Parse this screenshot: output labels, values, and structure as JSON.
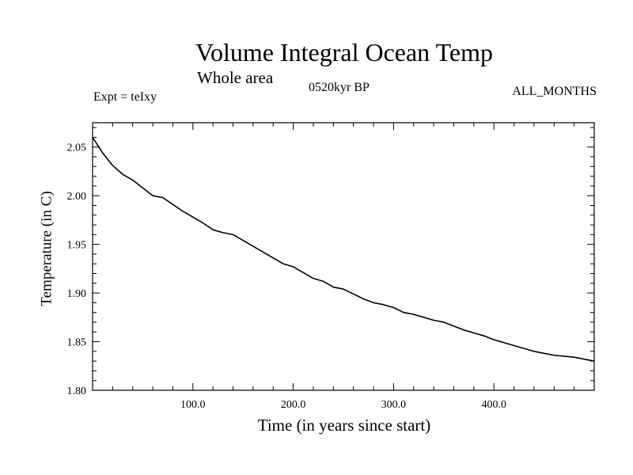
{
  "chart_data": {
    "type": "line",
    "title": "Volume Integral Ocean Temp",
    "subtitle": "Whole area",
    "annotations": {
      "left": "Expt = teIxy",
      "center": "0520kyr BP",
      "right": "ALL_MONTHS"
    },
    "xlabel": "Time (in years since start)",
    "ylabel": "Temperature (in C)",
    "xlim": [
      0,
      500
    ],
    "ylim": [
      1.8,
      2.075
    ],
    "xticks": [
      100.0,
      200.0,
      300.0,
      400.0
    ],
    "xtick_labels": [
      "100.0",
      "200.0",
      "300.0",
      "400.0"
    ],
    "yticks": [
      1.8,
      1.85,
      1.9,
      1.95,
      2.0,
      2.05
    ],
    "ytick_labels": [
      "1.80",
      "1.85",
      "1.90",
      "1.95",
      "2.00",
      "2.05"
    ],
    "grid": false,
    "series": [
      {
        "color": "#000000",
        "x": [
          0,
          10,
          20,
          30,
          40,
          50,
          60,
          70,
          80,
          90,
          100,
          110,
          120,
          130,
          140,
          150,
          160,
          170,
          180,
          190,
          200,
          210,
          220,
          230,
          240,
          250,
          260,
          270,
          280,
          290,
          300,
          310,
          320,
          330,
          340,
          350,
          360,
          370,
          380,
          390,
          400,
          410,
          420,
          430,
          440,
          450,
          460,
          470,
          480,
          490,
          500
        ],
        "y": [
          2.06,
          2.044,
          2.031,
          2.022,
          2.016,
          2.008,
          2.0,
          1.998,
          1.991,
          1.984,
          1.978,
          1.972,
          1.965,
          1.962,
          1.96,
          1.954,
          1.948,
          1.942,
          1.936,
          1.93,
          1.927,
          1.921,
          1.915,
          1.912,
          1.906,
          1.904,
          1.899,
          1.894,
          1.89,
          1.888,
          1.885,
          1.88,
          1.878,
          1.875,
          1.872,
          1.87,
          1.866,
          1.862,
          1.859,
          1.856,
          1.852,
          1.849,
          1.846,
          1.843,
          1.84,
          1.838,
          1.836,
          1.835,
          1.834,
          1.832,
          1.83
        ]
      }
    ]
  }
}
